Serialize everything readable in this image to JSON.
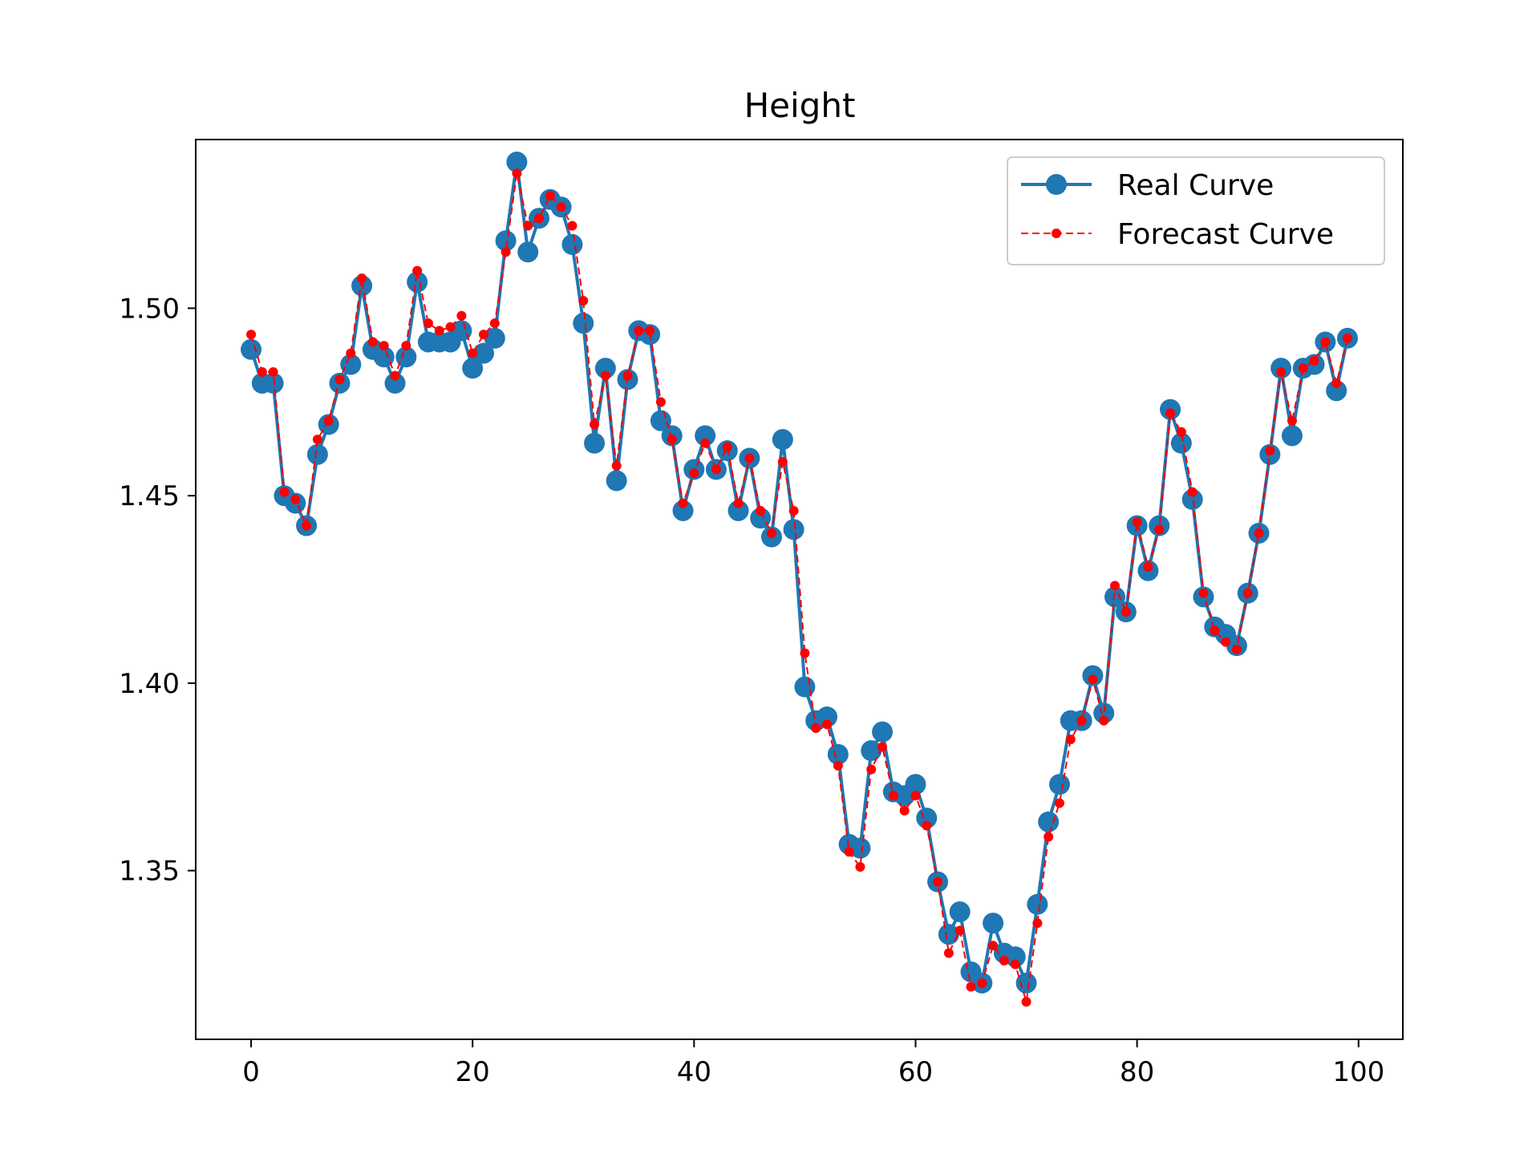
{
  "chart_data": {
    "type": "line",
    "title": "Height",
    "xlabel": "",
    "ylabel": "",
    "xlim": [
      -5,
      104
    ],
    "ylim": [
      1.305,
      1.545
    ],
    "xticks": [
      0,
      20,
      40,
      60,
      80,
      100
    ],
    "yticks": [
      1.35,
      1.4,
      1.45,
      1.5
    ],
    "xtick_labels": [
      "0",
      "20",
      "40",
      "60",
      "80",
      "100"
    ],
    "ytick_labels": [
      "1.35",
      "1.40",
      "1.45",
      "1.50"
    ],
    "grid": false,
    "legend_position": "top-right",
    "x": [
      0,
      1,
      2,
      3,
      4,
      5,
      6,
      7,
      8,
      9,
      10,
      11,
      12,
      13,
      14,
      15,
      16,
      17,
      18,
      19,
      20,
      21,
      22,
      23,
      24,
      25,
      26,
      27,
      28,
      29,
      30,
      31,
      32,
      33,
      34,
      35,
      36,
      37,
      38,
      39,
      40,
      41,
      42,
      43,
      44,
      45,
      46,
      47,
      48,
      49,
      50,
      51,
      52,
      53,
      54,
      55,
      56,
      57,
      58,
      59,
      60,
      61,
      62,
      63,
      64,
      65,
      66,
      67,
      68,
      69,
      70,
      71,
      72,
      73,
      74,
      75,
      76,
      77,
      78,
      79,
      80,
      81,
      82,
      83,
      84,
      85,
      86,
      87,
      88,
      89,
      90,
      91,
      92,
      93,
      94,
      95,
      96,
      97,
      98,
      99
    ],
    "series": [
      {
        "name": "Real Curve",
        "color": "#1f77b4",
        "style": "solid",
        "marker": "large-circle",
        "values": [
          1.489,
          1.48,
          1.48,
          1.45,
          1.448,
          1.442,
          1.461,
          1.469,
          1.48,
          1.485,
          1.506,
          1.489,
          1.487,
          1.48,
          1.487,
          1.507,
          1.491,
          1.491,
          1.491,
          1.494,
          1.484,
          1.488,
          1.492,
          1.518,
          1.539,
          1.515,
          1.524,
          1.529,
          1.527,
          1.517,
          1.496,
          1.464,
          1.484,
          1.454,
          1.481,
          1.494,
          1.493,
          1.47,
          1.466,
          1.446,
          1.457,
          1.466,
          1.457,
          1.462,
          1.446,
          1.46,
          1.444,
          1.439,
          1.465,
          1.441,
          1.399,
          1.39,
          1.391,
          1.381,
          1.357,
          1.356,
          1.382,
          1.387,
          1.371,
          1.37,
          1.373,
          1.364,
          1.347,
          1.333,
          1.339,
          1.323,
          1.32,
          1.336,
          1.328,
          1.327,
          1.32,
          1.341,
          1.363,
          1.373,
          1.39,
          1.39,
          1.402,
          1.392,
          1.423,
          1.419,
          1.442,
          1.43,
          1.442,
          1.473,
          1.464,
          1.449,
          1.423,
          1.415,
          1.413,
          1.41,
          1.424,
          1.44,
          1.461,
          1.484,
          1.466,
          1.484,
          1.485,
          1.491,
          1.478,
          1.492
        ]
      },
      {
        "name": "Forecast Curve",
        "color": "#ff0000",
        "style": "dashed",
        "marker": "small-circle",
        "values": [
          1.493,
          1.483,
          1.483,
          1.451,
          1.449,
          1.442,
          1.465,
          1.47,
          1.481,
          1.488,
          1.508,
          1.491,
          1.49,
          1.482,
          1.49,
          1.51,
          1.496,
          1.494,
          1.495,
          1.498,
          1.488,
          1.493,
          1.496,
          1.515,
          1.536,
          1.522,
          1.524,
          1.53,
          1.527,
          1.522,
          1.502,
          1.469,
          1.482,
          1.458,
          1.482,
          1.494,
          1.494,
          1.475,
          1.465,
          1.448,
          1.456,
          1.464,
          1.457,
          1.463,
          1.448,
          1.46,
          1.446,
          1.44,
          1.459,
          1.446,
          1.408,
          1.388,
          1.389,
          1.378,
          1.355,
          1.351,
          1.377,
          1.383,
          1.37,
          1.366,
          1.37,
          1.362,
          1.347,
          1.328,
          1.334,
          1.319,
          1.32,
          1.33,
          1.326,
          1.325,
          1.315,
          1.336,
          1.359,
          1.368,
          1.385,
          1.39,
          1.401,
          1.39,
          1.426,
          1.419,
          1.443,
          1.431,
          1.441,
          1.472,
          1.467,
          1.451,
          1.424,
          1.414,
          1.411,
          1.409,
          1.424,
          1.44,
          1.462,
          1.483,
          1.47,
          1.484,
          1.486,
          1.491,
          1.48,
          1.492
        ]
      }
    ]
  }
}
